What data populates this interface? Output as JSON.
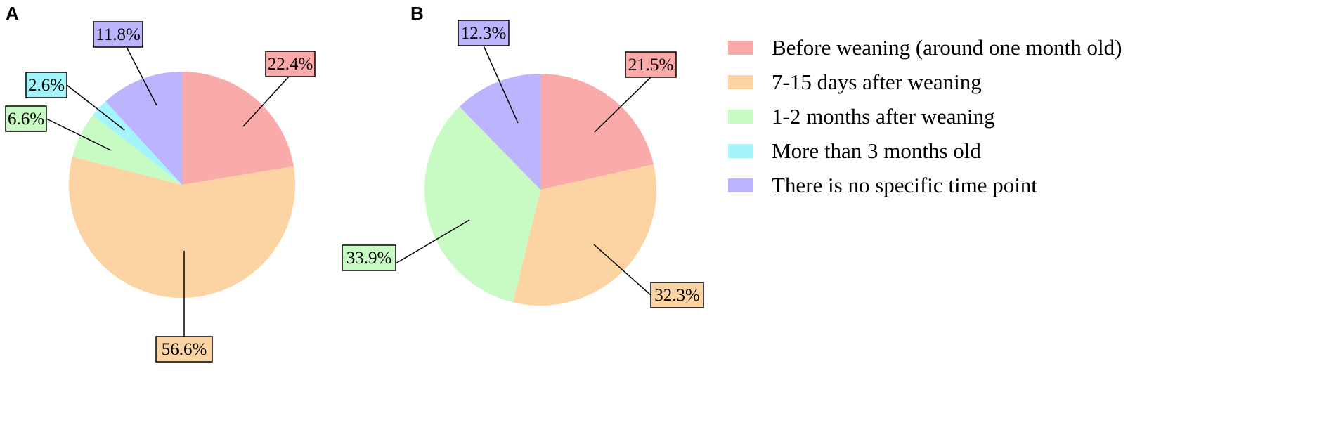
{
  "colors": {
    "before_weaning": "#FBAAAA",
    "days_7_15": "#FCD4A4",
    "months_1_2": "#C8FBC4",
    "more_3_months": "#A4F4FC",
    "no_time_point": "#BCB4FC"
  },
  "legend": [
    {
      "label": "Before weaning (around one month old)",
      "color": "#FBAAAA"
    },
    {
      "label": "7-15 days after weaning",
      "color": "#FCD4A4"
    },
    {
      "label": "1-2 months after weaning",
      "color": "#C8FBC4"
    },
    {
      "label": "More than 3 months old",
      "color": "#A4F4FC"
    },
    {
      "label": "There is no specific time point",
      "color": "#BCB4FC"
    }
  ],
  "chart_data": [
    {
      "type": "pie",
      "panel": "A",
      "legend_placement": "right",
      "slices": [
        {
          "category": "Before weaning (around one month old)",
          "value": 22.4,
          "label": "22.4%",
          "color": "#FBAAAA"
        },
        {
          "category": "7-15 days after weaning",
          "value": 56.6,
          "label": "56.6%",
          "color": "#FCD4A4"
        },
        {
          "category": "1-2 months after weaning",
          "value": 6.6,
          "label": "6.6%",
          "color": "#C8FBC4"
        },
        {
          "category": "More than 3 months old",
          "value": 2.6,
          "label": "2.6%",
          "color": "#A4F4FC"
        },
        {
          "category": "There is no specific time point",
          "value": 11.8,
          "label": "11.8%",
          "color": "#BCB4FC"
        }
      ]
    },
    {
      "type": "pie",
      "panel": "B",
      "legend_placement": "right",
      "slices": [
        {
          "category": "Before weaning (around one month old)",
          "value": 21.5,
          "label": "21.5%",
          "color": "#FBAAAA"
        },
        {
          "category": "7-15 days after weaning",
          "value": 32.3,
          "label": "32.3%",
          "color": "#FCD4A4"
        },
        {
          "category": "1-2 months after weaning",
          "value": 33.9,
          "label": "33.9%",
          "color": "#C8FBC4"
        },
        {
          "category": "There is no specific time point",
          "value": 12.3,
          "label": "12.3%",
          "color": "#BCB4FC"
        }
      ]
    }
  ]
}
